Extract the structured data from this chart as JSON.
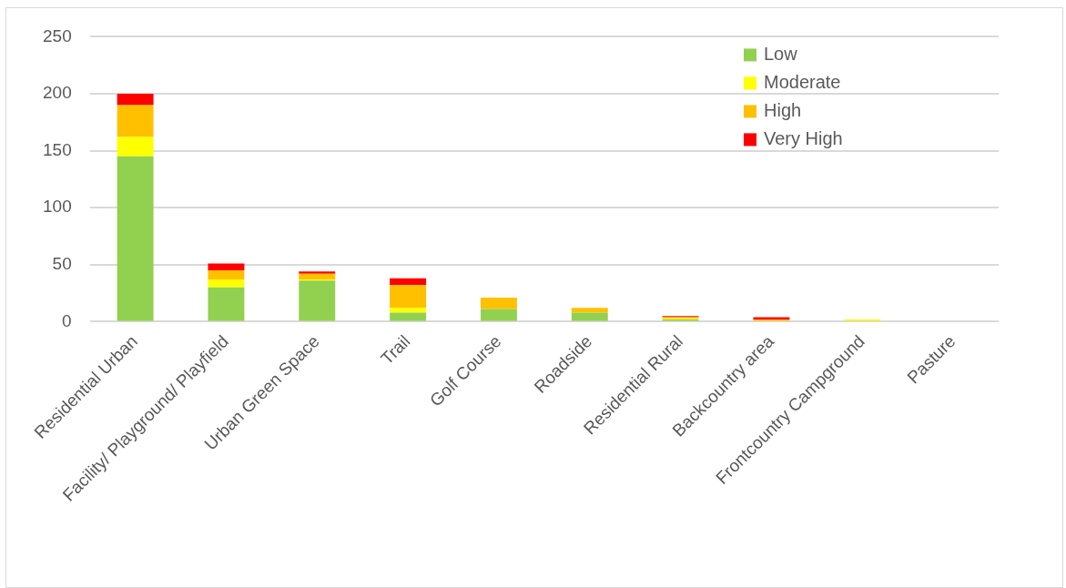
{
  "chart_data": {
    "type": "bar",
    "stacked": true,
    "categories": [
      "Residential Urban",
      "Facility/ Playground/ Playfield",
      "Urban Green Space",
      "Trail",
      "Golf Course",
      "Roadside",
      "Residential Rural",
      "Backcountry area",
      "Frontcountry Campground",
      "Pasture"
    ],
    "series": [
      {
        "name": "Low",
        "color": "#92d050",
        "values": [
          145,
          30,
          36,
          8,
          11,
          8,
          2,
          0,
          0,
          0
        ]
      },
      {
        "name": "Moderate",
        "color": "#ffff00",
        "values": [
          17,
          7,
          1,
          4,
          0,
          0,
          1,
          0,
          2,
          0
        ]
      },
      {
        "name": "High",
        "color": "#ffc000",
        "values": [
          28,
          8,
          5,
          20,
          10,
          4,
          1,
          2,
          0,
          0
        ]
      },
      {
        "name": "Very High",
        "color": "#ff0000",
        "values": [
          10,
          6,
          2,
          6,
          0,
          0,
          1,
          2,
          0,
          0
        ]
      }
    ],
    "ylim": [
      0,
      250
    ],
    "yticks": [
      0,
      50,
      100,
      150,
      200,
      250
    ],
    "grid": "y",
    "legend": "top right"
  }
}
